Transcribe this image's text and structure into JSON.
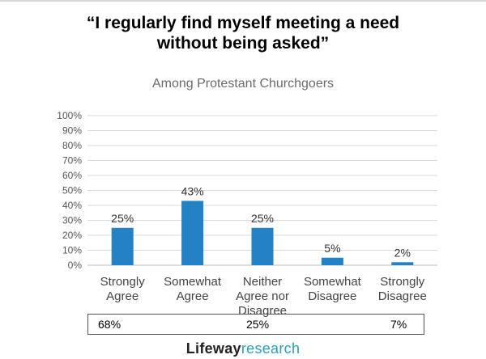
{
  "title_line1": "“I regularly find myself meeting a need",
  "title_line2": "without being asked”",
  "subtitle": "Among Protestant Churchgoers",
  "summary": [
    "68%",
    "25%",
    "7%"
  ],
  "logo_part1": "Lifeway",
  "logo_part2": "research",
  "colors": {
    "bar": "#2481c3",
    "grid": "#d9d9d9",
    "logo_accent": "#2aa0b5"
  },
  "chart_data": {
    "type": "bar",
    "title": "“I regularly find myself meeting a need without being asked”",
    "subtitle": "Among Protestant Churchgoers",
    "categories": [
      [
        "Strongly",
        "Agree"
      ],
      [
        "Somewhat",
        "Agree"
      ],
      [
        "Neither",
        "Agree nor",
        "Disagree"
      ],
      [
        "Somewhat",
        "Disagree"
      ],
      [
        "Strongly",
        "Disagree"
      ]
    ],
    "values": [
      25,
      43,
      25,
      5,
      2
    ],
    "data_labels": [
      "25%",
      "43%",
      "25%",
      "5%",
      "2%"
    ],
    "ylim": [
      0,
      100
    ],
    "yticks": [
      0,
      10,
      20,
      30,
      40,
      50,
      60,
      70,
      80,
      90,
      100
    ],
    "ytick_labels": [
      "0%",
      "10%",
      "20%",
      "30%",
      "40%",
      "50%",
      "60%",
      "70%",
      "80%",
      "90%",
      "100%"
    ],
    "grid": true,
    "xlabel": "",
    "ylabel": ""
  }
}
